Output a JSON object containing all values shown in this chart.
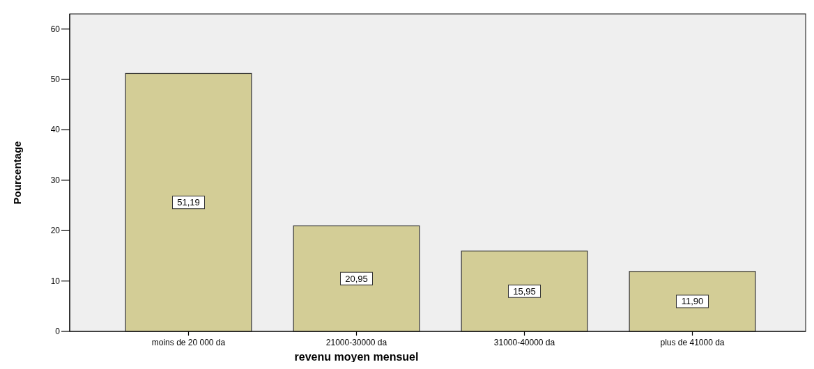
{
  "chart_data": {
    "type": "bar",
    "xlabel": "revenu moyen mensuel",
    "ylabel": "Pourcentage",
    "categories": [
      "moins de 20 000 da",
      "21000-30000 da",
      "31000-40000 da",
      "plus de 41000 da"
    ],
    "values": [
      51.19,
      20.95,
      15.95,
      11.9
    ],
    "value_labels": [
      "51,19",
      "20,95",
      "15,95",
      "11,90"
    ],
    "color": "#d3cd96",
    "ylim": [
      0,
      63
    ],
    "yticks": [
      0,
      10,
      20,
      30,
      40,
      50,
      60
    ],
    "grid": false
  }
}
